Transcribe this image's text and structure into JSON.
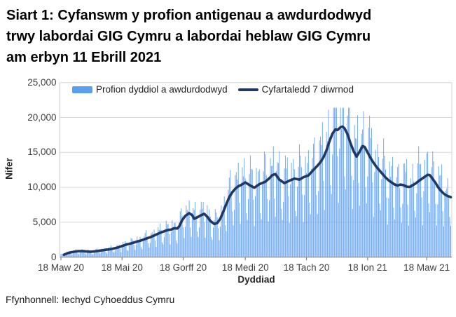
{
  "title": {
    "lines": [
      "Siart 1: Cyfanswm y profion antigenau a awdurdodwyd",
      "trwy labordai GIG Cymru a labordai heblaw GIG Cymru",
      "am erbyn 11 Ebrill 2021"
    ]
  },
  "footer": {
    "text": "Ffynhonnell: Iechyd Cyhoeddus Cymru"
  },
  "colors": {
    "bar": "#5B9FF0",
    "line": "#1F3864",
    "gridline": "#D6D6D6",
    "axis": "#8C8C8C",
    "tick_text": "#3F3F3F",
    "title_text": "#000000"
  },
  "chart_data": {
    "type": "bar+line",
    "title": "Siart 1: Cyfanswm y profion antigenau a awdurdodwyd trwy labordai GIG Cymru a labordai heblaw GIG Cymru am erbyn 11 Ebrill 2021",
    "xlabel": "Dyddiad",
    "ylabel": "Nifer",
    "ylim": [
      0,
      25000
    ],
    "yticks": [
      0,
      5000,
      10000,
      15000,
      20000,
      25000
    ],
    "ytick_labels": [
      "0",
      "5,000",
      "10,000",
      "15,000",
      "20,000",
      "25,000"
    ],
    "xticks": [
      {
        "day": 0,
        "label": "18 Maw 20"
      },
      {
        "day": 61,
        "label": "18 Mai 20"
      },
      {
        "day": 122,
        "label": "18 Gorff 20"
      },
      {
        "day": 184,
        "label": "18 Medi 20"
      },
      {
        "day": 245,
        "label": "18 Tach 20"
      },
      {
        "day": 306,
        "label": "18 Ion 21"
      },
      {
        "day": 365,
        "label": "18 Maw 21"
      }
    ],
    "days_total": 390,
    "grid": "horizontal",
    "legend_position": "top-inside",
    "series": [
      {
        "name": "Profion dyddiol a awdurdodwyd",
        "type": "bar",
        "color": "#5B9FF0",
        "weekly_pattern": [
          1.22,
          1.25,
          1.18,
          0.7,
          0.48,
          0.88,
          1.2
        ],
        "wiggle": {
          "a1": 0.12,
          "f1": 2.17,
          "a2": 0.08,
          "f2": 0.53,
          "p2": 1.0
        },
        "max_clamp": 21400,
        "min_clamp": 40,
        "derived_from": "7-day average value × weekly_pattern[day%7] × wiggle(day)"
      },
      {
        "name": "Cyfartaledd 7 diwrnod",
        "type": "line",
        "color": "#1F3864",
        "stroke_width": 3.6,
        "points": [
          [
            3,
            350
          ],
          [
            7,
            600
          ],
          [
            10,
            700
          ],
          [
            14,
            800
          ],
          [
            18,
            870
          ],
          [
            22,
            870
          ],
          [
            26,
            810
          ],
          [
            30,
            780
          ],
          [
            34,
            840
          ],
          [
            38,
            920
          ],
          [
            42,
            1000
          ],
          [
            46,
            1080
          ],
          [
            50,
            1160
          ],
          [
            54,
            1290
          ],
          [
            58,
            1440
          ],
          [
            61,
            1600
          ],
          [
            65,
            1800
          ],
          [
            68,
            1900
          ],
          [
            72,
            2050
          ],
          [
            75,
            2200
          ],
          [
            79,
            2350
          ],
          [
            82,
            2500
          ],
          [
            86,
            2700
          ],
          [
            89,
            2850
          ],
          [
            93,
            3100
          ],
          [
            96,
            3300
          ],
          [
            100,
            3550
          ],
          [
            104,
            3750
          ],
          [
            107,
            3900
          ],
          [
            110,
            3950
          ],
          [
            113,
            4150
          ],
          [
            116,
            4100
          ],
          [
            118,
            4400
          ],
          [
            121,
            5300
          ],
          [
            124,
            5900
          ],
          [
            128,
            6300
          ],
          [
            131,
            6000
          ],
          [
            133,
            5500
          ],
          [
            136,
            5700
          ],
          [
            139,
            5950
          ],
          [
            143,
            6200
          ],
          [
            146,
            5800
          ],
          [
            149,
            5200
          ],
          [
            153,
            4750
          ],
          [
            156,
            4900
          ],
          [
            159,
            5500
          ],
          [
            162,
            6500
          ],
          [
            165,
            7600
          ],
          [
            168,
            8600
          ],
          [
            171,
            9300
          ],
          [
            174,
            9800
          ],
          [
            177,
            10150
          ],
          [
            180,
            10350
          ],
          [
            184,
            10700
          ],
          [
            189,
            10250
          ],
          [
            193,
            9950
          ],
          [
            198,
            10450
          ],
          [
            204,
            10800
          ],
          [
            208,
            11300
          ],
          [
            211,
            11750
          ],
          [
            214,
            11900
          ],
          [
            218,
            11100
          ],
          [
            223,
            10600
          ],
          [
            228,
            10950
          ],
          [
            233,
            11250
          ],
          [
            238,
            11100
          ],
          [
            242,
            11450
          ],
          [
            247,
            11700
          ],
          [
            252,
            12500
          ],
          [
            256,
            13100
          ],
          [
            259,
            13600
          ],
          [
            262,
            14300
          ],
          [
            265,
            15300
          ],
          [
            268,
            16600
          ],
          [
            271,
            17700
          ],
          [
            274,
            18300
          ],
          [
            276,
            18200
          ],
          [
            279,
            18600
          ],
          [
            281,
            18700
          ],
          [
            283,
            18450
          ],
          [
            286,
            17600
          ],
          [
            289,
            16300
          ],
          [
            292,
            15200
          ],
          [
            295,
            14400
          ],
          [
            298,
            15100
          ],
          [
            301,
            15900
          ],
          [
            303,
            15800
          ],
          [
            306,
            15000
          ],
          [
            309,
            14200
          ],
          [
            312,
            13500
          ],
          [
            315,
            12900
          ],
          [
            318,
            12400
          ],
          [
            321,
            11900
          ],
          [
            324,
            11400
          ],
          [
            327,
            11000
          ],
          [
            330,
            10700
          ],
          [
            333,
            10400
          ],
          [
            336,
            10250
          ],
          [
            339,
            10400
          ],
          [
            342,
            10300
          ],
          [
            345,
            10100
          ],
          [
            348,
            10050
          ],
          [
            351,
            10300
          ],
          [
            354,
            10550
          ],
          [
            357,
            10900
          ],
          [
            360,
            11200
          ],
          [
            363,
            11500
          ],
          [
            366,
            11800
          ],
          [
            368,
            11750
          ],
          [
            370,
            11400
          ],
          [
            372,
            11000
          ],
          [
            374,
            10600
          ],
          [
            376,
            10100
          ],
          [
            378,
            9700
          ],
          [
            380,
            9400
          ],
          [
            382,
            9100
          ],
          [
            384,
            8900
          ],
          [
            386,
            8750
          ],
          [
            389,
            8600
          ]
        ]
      }
    ]
  }
}
